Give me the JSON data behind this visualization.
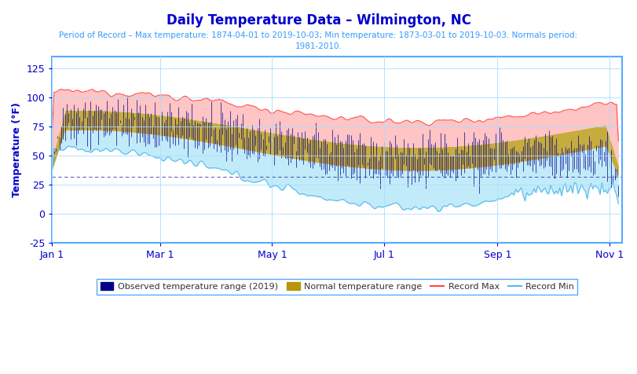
{
  "title": "Daily Temperature Data – Wilmington, NC",
  "subtitle": "Period of Record – Max temperature: 1874-04-01 to 2019-10-03; Min temperature: 1873-03-01 to 2019-10-03. Normals period:\n1981-2010.",
  "title_color": "#0000cc",
  "subtitle_color": "#3399ff",
  "ylabel": "Temperature (°F)",
  "ylabel_color": "#0000cc",
  "ylim": [
    -25,
    135
  ],
  "yticks": [
    -25,
    0,
    25,
    50,
    75,
    100,
    125
  ],
  "freezing_line": 32,
  "background_color": "#ffffff",
  "plot_background": "#ffffff",
  "grid_color": "#aaddff",
  "axis_color": "#55aaff",
  "tick_color": "#0000cc",
  "n_days": 310,
  "record_max_color": "#ff6666",
  "record_min_color": "#66ccff",
  "obs_color": "#00008b",
  "freeze_line_color": "#00008b",
  "freeze_line_style": "--",
  "legend_box_color": "#55aaff",
  "x_tick_labels": [
    "Jan 1",
    "Mar 1",
    "May 1",
    "Jul 1",
    "Sep 1",
    "Nov 1"
  ],
  "x_tick_positions": [
    1,
    60,
    121,
    182,
    244,
    305
  ]
}
